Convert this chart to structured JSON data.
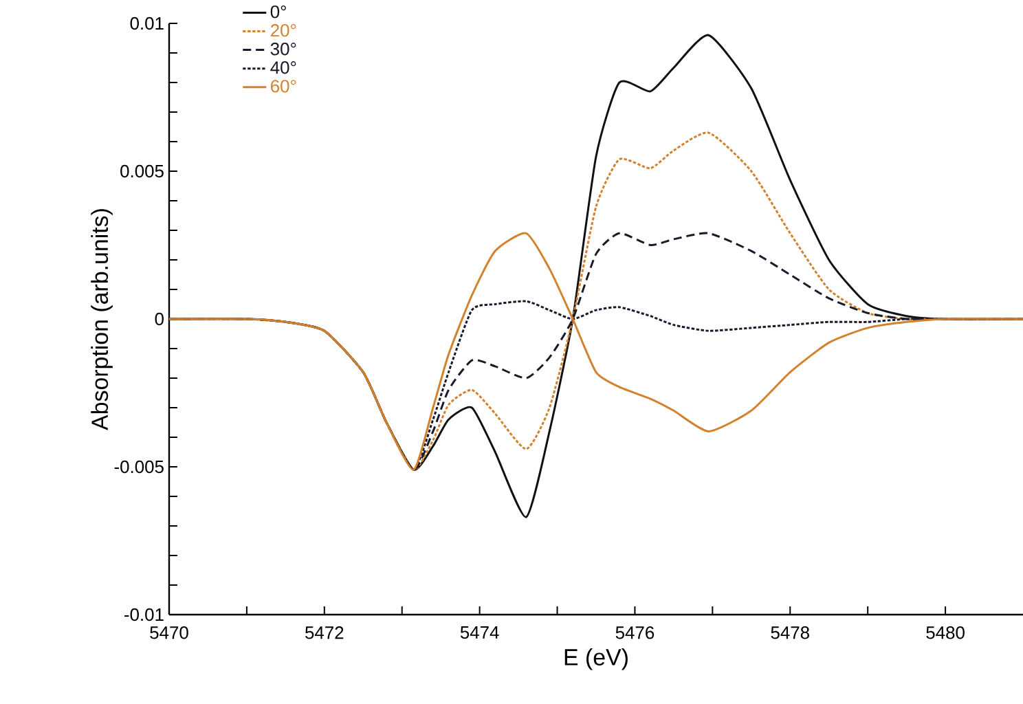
{
  "chart_data": {
    "type": "line",
    "xlabel": "E (eV)",
    "ylabel": "Absorption (arb.units)",
    "x": [
      5470,
      5471,
      5471.5,
      5472,
      5472.5,
      5472.8,
      5473.15,
      5473.4,
      5473.6,
      5473.9,
      5474.2,
      5474.6,
      5474.9,
      5475.2,
      5475.5,
      5475.8,
      5476.2,
      5476.5,
      5476.95,
      5477.5,
      5478,
      5478.5,
      5479,
      5479.5,
      5480,
      5481
    ],
    "series": [
      {
        "name": "0°",
        "color": "#111111",
        "line_style": "solid",
        "values": [
          0,
          0,
          -0.0001,
          -0.0004,
          -0.0018,
          -0.0035,
          -0.0051,
          -0.0043,
          -0.0034,
          -0.003,
          -0.0045,
          -0.0067,
          -0.0038,
          0,
          0.0055,
          0.008,
          0.0077,
          0.0085,
          0.0096,
          0.0078,
          0.0047,
          0.002,
          0.0005,
          0.0001,
          0,
          0
        ]
      },
      {
        "name": "20°",
        "color": "#d4812e",
        "line_style": "dotted",
        "values": [
          0,
          0,
          -0.0001,
          -0.0004,
          -0.0018,
          -0.0035,
          -0.0051,
          -0.0041,
          -0.0029,
          -0.0024,
          -0.0032,
          -0.0044,
          -0.003,
          0,
          0.0038,
          0.0054,
          0.0051,
          0.0057,
          0.0063,
          0.005,
          0.0029,
          0.001,
          0.0002,
          0,
          0,
          0
        ]
      },
      {
        "name": "30°",
        "color": "#1a1a2e",
        "line_style": "dashed",
        "values": [
          0,
          0,
          -0.0001,
          -0.0004,
          -0.0018,
          -0.0035,
          -0.0051,
          -0.0038,
          -0.0024,
          -0.0014,
          -0.0016,
          -0.002,
          -0.0013,
          0,
          0.0022,
          0.0029,
          0.0025,
          0.0027,
          0.0029,
          0.0023,
          0.0015,
          0.0007,
          0.0002,
          0,
          0,
          0
        ]
      },
      {
        "name": "40°",
        "color": "#1a1a2e",
        "line_style": "dotted",
        "values": [
          0,
          0,
          -0.0001,
          -0.0004,
          -0.0018,
          -0.0035,
          -0.0051,
          -0.0034,
          -0.0018,
          0.0003,
          0.0005,
          0.0006,
          0.0003,
          0,
          0.0003,
          0.0004,
          0.0001,
          -0.0002,
          -0.0004,
          -0.0003,
          -0.0002,
          -0.0001,
          -0.0001,
          0,
          0,
          0
        ]
      },
      {
        "name": "60°",
        "color": "#d4812e",
        "line_style": "solid",
        "values": [
          0,
          0,
          -0.0001,
          -0.0004,
          -0.0018,
          -0.0035,
          -0.0051,
          -0.003,
          -0.0012,
          0.0008,
          0.0023,
          0.0029,
          0.0017,
          0,
          -0.0018,
          -0.0023,
          -0.0027,
          -0.0031,
          -0.0038,
          -0.0031,
          -0.0018,
          -0.0008,
          -0.0003,
          -0.0001,
          0,
          0
        ]
      }
    ],
    "xlim": [
      5470,
      5481
    ],
    "xticks": [
      5470,
      {
        "value": 5471,
        "label": null
      },
      5472,
      {
        "value": 5473,
        "label": null
      },
      5474,
      {
        "value": 5475,
        "label": null
      },
      5476,
      {
        "value": 5477,
        "label": null
      },
      5478,
      {
        "value": 5479,
        "label": null
      },
      5480
    ],
    "ylim": [
      -0.01,
      0.01
    ],
    "yticks": [
      -0.01,
      {
        "value": -0.009,
        "label": null
      },
      {
        "value": -0.008,
        "label": null
      },
      {
        "value": -0.007,
        "label": null
      },
      {
        "value": -0.006,
        "label": null
      },
      -0.005,
      {
        "value": -0.004,
        "label": null
      },
      {
        "value": -0.003,
        "label": null
      },
      {
        "value": -0.002,
        "label": null
      },
      {
        "value": -0.001,
        "label": null
      },
      0,
      {
        "value": 0.001,
        "label": null
      },
      {
        "value": 0.002,
        "label": null
      },
      {
        "value": 0.003,
        "label": null
      },
      {
        "value": 0.004,
        "label": null
      },
      0.005,
      {
        "value": 0.006,
        "label": null
      },
      {
        "value": 0.007,
        "label": null
      },
      {
        "value": 0.008,
        "label": null
      },
      {
        "value": 0.009,
        "label": null
      },
      0.01
    ],
    "grid": false,
    "legend": "top left",
    "marker": "none"
  }
}
